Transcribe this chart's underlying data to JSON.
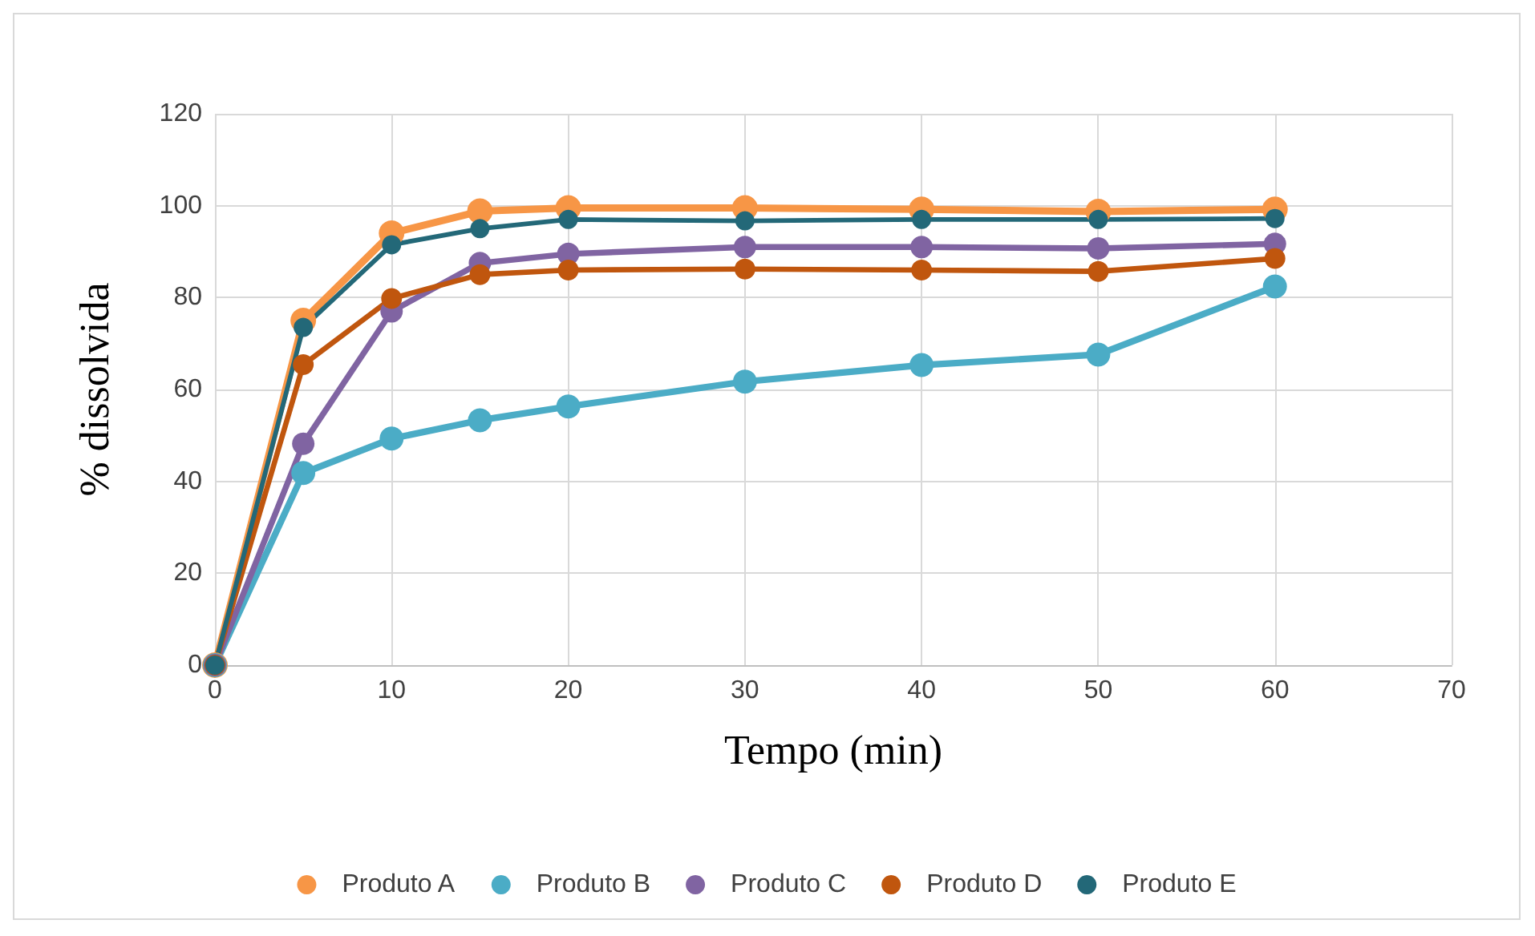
{
  "chart_data": {
    "type": "line",
    "xlabel": "Tempo (min)",
    "ylabel": "% dissolvida",
    "x": [
      0,
      5,
      10,
      15,
      20,
      30,
      40,
      50,
      60
    ],
    "series": [
      {
        "name": "Produto A",
        "color": "#f79646",
        "values": [
          0,
          75,
          94,
          98.8,
          99.5,
          99.5,
          99.2,
          98.7,
          99.2
        ]
      },
      {
        "name": "Produto B",
        "color": "#4bacc6",
        "values": [
          0,
          41.8,
          49.3,
          53.3,
          56.3,
          61.7,
          65.3,
          67.6,
          82.4
        ]
      },
      {
        "name": "Produto C",
        "color": "#8064a2",
        "values": [
          0,
          48.2,
          77,
          87.5,
          89.5,
          91,
          91,
          90.7,
          91.7
        ]
      },
      {
        "name": "Produto D",
        "color": "#c0560e",
        "values": [
          0,
          65.4,
          79.8,
          85,
          86,
          86.2,
          86,
          85.7,
          88.5
        ]
      },
      {
        "name": "Produto E",
        "color": "#236878",
        "values": [
          0,
          73.5,
          91.5,
          95,
          97,
          96.7,
          97,
          97,
          97.2
        ]
      }
    ],
    "xlim": [
      0,
      70
    ],
    "xticks": [
      0,
      10,
      20,
      30,
      40,
      50,
      60,
      70
    ],
    "ylim": [
      0,
      120
    ],
    "yticks": [
      0,
      20,
      40,
      60,
      80,
      100,
      120
    ],
    "grid": true,
    "legend": "bottom",
    "marker": "circle",
    "line_style": "solid"
  }
}
